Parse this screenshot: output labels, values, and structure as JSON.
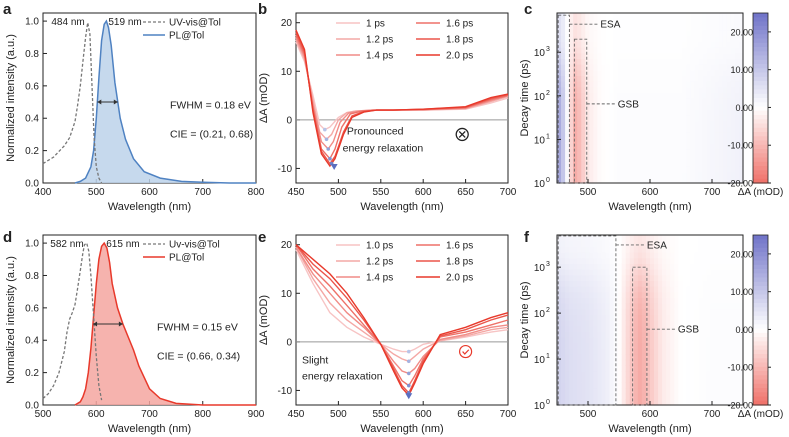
{
  "colors": {
    "blue": "#4f82c2",
    "blue_fill": "#bcd2ea",
    "red": "#e8392b",
    "red_fill": "#f5a6a0",
    "dashed": "#777777",
    "ann_grey": "#9a9a9a",
    "heat_pos": "#6f72c8",
    "heat_neg": "#f07068",
    "bg": "#ffffff",
    "axis": "#222222"
  },
  "chart_data": [
    {
      "id": "a",
      "panel_label": "a",
      "type": "line",
      "xlabel": "Wavelength (nm)",
      "ylabel": "Normalized intensity (a.u.)",
      "xlim": [
        400,
        800
      ],
      "ylim": [
        0,
        1.05
      ],
      "xticks": [
        "400",
        "500",
        "600",
        "700",
        "800"
      ],
      "yticks": [
        "0.0",
        "0.2",
        "0.4",
        "0.6",
        "0.8",
        "1.0"
      ],
      "legend": [
        {
          "label": "UV-vis@Tol",
          "style": "dashed"
        },
        {
          "label": "PL@Tol",
          "style": "solid-blue"
        }
      ],
      "annotations": {
        "peak1": "484 nm",
        "peak2": "519 nm",
        "fwhm": "FWHM = 0.18 eV",
        "cie": "CIE = (0.21, 0.68)"
      },
      "series": [
        {
          "name": "UV-vis@Tol",
          "x": [
            400,
            420,
            440,
            450,
            460,
            465,
            470,
            475,
            480,
            484,
            488,
            492,
            496,
            500,
            505,
            510
          ],
          "y": [
            0.12,
            0.16,
            0.23,
            0.28,
            0.38,
            0.48,
            0.6,
            0.75,
            0.9,
            0.99,
            0.92,
            0.6,
            0.28,
            0.1,
            0.03,
            0.0
          ]
        },
        {
          "name": "PL@Tol",
          "x": [
            460,
            470,
            480,
            490,
            495,
            500,
            505,
            510,
            515,
            519,
            523,
            528,
            535,
            545,
            555,
            570,
            590,
            620,
            660,
            700,
            750,
            800
          ],
          "y": [
            0.0,
            0.01,
            0.03,
            0.1,
            0.2,
            0.4,
            0.65,
            0.88,
            0.98,
            1.0,
            0.96,
            0.85,
            0.62,
            0.4,
            0.27,
            0.15,
            0.07,
            0.03,
            0.01,
            0.005,
            0.0,
            0.0
          ]
        }
      ]
    },
    {
      "id": "b",
      "panel_label": "b",
      "type": "line",
      "xlabel": "Wavelength (nm)",
      "ylabel": "ΔA (mOD)",
      "xlim": [
        450,
        700
      ],
      "ylim": [
        -13,
        22
      ],
      "xticks": [
        "450",
        "500",
        "550",
        "600",
        "650",
        "700"
      ],
      "yticks": [
        "-10",
        "0",
        "10",
        "20"
      ],
      "legend": [
        {
          "label": "1 ps",
          "shade": 0
        },
        {
          "label": "1.2 ps",
          "shade": 1
        },
        {
          "label": "1.4 ps",
          "shade": 2
        },
        {
          "label": "1.6 ps",
          "shade": 3
        },
        {
          "label": "1.8 ps",
          "shade": 4
        },
        {
          "label": "2.0 ps",
          "shade": 5
        }
      ],
      "annotations": {
        "text1": "Pronounced",
        "text2": "energy relaxation"
      },
      "series": [
        {
          "name": "1 ps",
          "x": [
            450,
            460,
            470,
            478,
            484,
            490,
            500,
            510,
            520,
            540,
            560,
            600,
            650,
            680,
            700
          ],
          "y": [
            16,
            12,
            5,
            -1,
            -2,
            -1.5,
            0.5,
            1.5,
            1.8,
            2.0,
            2.0,
            2.0,
            2.2,
            3.5,
            4.5
          ]
        },
        {
          "name": "1.2 ps",
          "x": [
            450,
            460,
            470,
            478,
            486,
            492,
            500,
            510,
            520,
            540,
            560,
            600,
            650,
            680,
            700
          ],
          "y": [
            16.5,
            12.5,
            4,
            -2.5,
            -4,
            -3,
            0,
            1.5,
            1.8,
            2.0,
            2.0,
            2.0,
            2.3,
            3.8,
            4.8
          ]
        },
        {
          "name": "1.4 ps",
          "x": [
            450,
            460,
            470,
            480,
            488,
            494,
            502,
            512,
            525,
            540,
            560,
            600,
            650,
            680,
            700
          ],
          "y": [
            17,
            13,
            3,
            -4.5,
            -6,
            -4.5,
            -0.5,
            1.4,
            1.8,
            2.0,
            2.0,
            2.1,
            2.4,
            4.0,
            5.0
          ]
        },
        {
          "name": "1.6 ps",
          "x": [
            450,
            460,
            470,
            480,
            490,
            496,
            504,
            514,
            528,
            545,
            565,
            600,
            650,
            680,
            700
          ],
          "y": [
            17.5,
            13.5,
            2.5,
            -6,
            -8,
            -6,
            -1.5,
            1.2,
            1.8,
            2.0,
            2.0,
            2.1,
            2.5,
            4.2,
            5.0
          ]
        },
        {
          "name": "1.8 ps",
          "x": [
            450,
            460,
            470,
            480,
            490,
            496,
            506,
            516,
            530,
            545,
            565,
            600,
            650,
            680,
            700
          ],
          "y": [
            18,
            14,
            2,
            -6.5,
            -9,
            -7.5,
            -2.5,
            0.8,
            1.7,
            2.0,
            2.0,
            2.2,
            2.6,
            4.4,
            5.2
          ]
        },
        {
          "name": "2.0 ps",
          "x": [
            450,
            460,
            470,
            480,
            490,
            496,
            506,
            516,
            530,
            545,
            565,
            600,
            650,
            680,
            700
          ],
          "y": [
            18.5,
            14.5,
            1.5,
            -7,
            -9.5,
            -8,
            -3,
            0.5,
            1.6,
            2.0,
            2.0,
            2.2,
            2.7,
            4.6,
            5.3
          ]
        }
      ],
      "marker_points": {
        "x": [
          484,
          486,
          488,
          490,
          492,
          495
        ],
        "y": [
          -2,
          -4,
          -6,
          -8,
          -9,
          -9.5
        ]
      }
    },
    {
      "id": "c",
      "panel_label": "c",
      "type": "heatmap",
      "xlabel": "Wavelength (nm)",
      "ylabel": "Decay time (ps)",
      "xlim": [
        450,
        750
      ],
      "ylim_log10": [
        0,
        3.9
      ],
      "xticks": [
        "500",
        "600",
        "700"
      ],
      "yticks": [
        "10",
        "10",
        "10",
        "10"
      ],
      "ytick_exponents": [
        "0",
        "1",
        "2",
        "3"
      ],
      "colorbar_ticks": [
        "20.00",
        "10.00",
        "0.00",
        "-10.00",
        "-20.00"
      ],
      "colorbar_label": "ΔA (mOD)",
      "colorbar_range": [
        -20,
        25
      ],
      "boxes": [
        {
          "label": "ESA",
          "x": [
            452,
            470
          ],
          "ylog": [
            0,
            3.85
          ]
        },
        {
          "label": "GSB",
          "x": [
            478,
            498
          ],
          "ylog": [
            0,
            3.3
          ]
        }
      ],
      "spectrum_x": [
        450,
        460,
        470,
        480,
        490,
        500,
        520,
        550,
        600,
        650,
        700,
        750
      ],
      "spectrum_a": [
        18,
        10,
        -4,
        -12,
        -8,
        -3,
        -0.5,
        0.5,
        0.5,
        0.5,
        1.5,
        2.5
      ],
      "decay_tau": 600,
      "decay_base": 0.35
    },
    {
      "id": "d",
      "panel_label": "d",
      "type": "line",
      "xlabel": "Wavelength (nm)",
      "ylabel": "Normalized intensity (a.u.)",
      "xlim": [
        500,
        900
      ],
      "ylim": [
        0,
        1.05
      ],
      "xticks": [
        "500",
        "600",
        "700",
        "800",
        "900"
      ],
      "yticks": [
        "0.0",
        "0.2",
        "0.4",
        "0.6",
        "0.8",
        "1.0"
      ],
      "legend": [
        {
          "label": "Uv-vis@Tol",
          "style": "dashed"
        },
        {
          "label": "PL@Tol",
          "style": "solid-red"
        }
      ],
      "annotations": {
        "peak1": "582 nm",
        "peak2": "615 nm",
        "fwhm": "FWHM = 0.15 eV",
        "cie": "CIE = (0.66, 0.34)"
      },
      "series": [
        {
          "name": "Uv-vis@Tol",
          "x": [
            500,
            510,
            520,
            530,
            540,
            545,
            550,
            555,
            560,
            565,
            570,
            575,
            578,
            582,
            586,
            590,
            595,
            600,
            605,
            610
          ],
          "y": [
            0.04,
            0.07,
            0.12,
            0.2,
            0.33,
            0.45,
            0.53,
            0.57,
            0.62,
            0.72,
            0.83,
            0.94,
            0.99,
            1.0,
            0.95,
            0.8,
            0.55,
            0.3,
            0.12,
            0.03
          ]
        },
        {
          "name": "PL@Tol",
          "x": [
            560,
            570,
            575,
            580,
            585,
            590,
            595,
            600,
            605,
            610,
            615,
            620,
            625,
            630,
            640,
            650,
            660,
            670,
            680,
            700,
            720,
            750,
            800,
            900
          ],
          "y": [
            0.0,
            0.02,
            0.05,
            0.1,
            0.2,
            0.35,
            0.55,
            0.75,
            0.9,
            0.98,
            1.0,
            0.97,
            0.88,
            0.75,
            0.6,
            0.5,
            0.42,
            0.34,
            0.24,
            0.1,
            0.04,
            0.01,
            0.0,
            0.0
          ]
        }
      ]
    },
    {
      "id": "e",
      "panel_label": "e",
      "type": "line",
      "xlabel": "Wavelength (nm)",
      "ylabel": "ΔA (mOD)",
      "xlim": [
        450,
        700
      ],
      "ylim": [
        -13,
        22
      ],
      "xticks": [
        "450",
        "500",
        "550",
        "600",
        "650",
        "700"
      ],
      "yticks": [
        "-10",
        "0",
        "10",
        "20"
      ],
      "legend": [
        {
          "label": "1.0 ps",
          "shade": 0
        },
        {
          "label": "1.2 ps",
          "shade": 1
        },
        {
          "label": "1.4 ps",
          "shade": 2
        },
        {
          "label": "1.6 ps",
          "shade": 3
        },
        {
          "label": "1.8 ps",
          "shade": 4
        },
        {
          "label": "2.0 ps",
          "shade": 5
        }
      ],
      "annotations": {
        "text1": "Slight",
        "text2": "energy relaxation"
      },
      "series": [
        {
          "name": "1.0 ps",
          "x": [
            450,
            470,
            490,
            510,
            530,
            550,
            565,
            575,
            583,
            590,
            600,
            620,
            650,
            680,
            700
          ],
          "y": [
            19,
            12,
            6,
            3,
            1,
            -0.5,
            -1.5,
            -2,
            -2,
            -1.5,
            -0.5,
            0.2,
            1.0,
            2.0,
            2.5
          ]
        },
        {
          "name": "1.2 ps",
          "x": [
            450,
            470,
            490,
            510,
            530,
            550,
            565,
            575,
            583,
            590,
            600,
            620,
            650,
            680,
            700
          ],
          "y": [
            19.5,
            13,
            8,
            4.5,
            2,
            -0.5,
            -2.5,
            -3.5,
            -4,
            -3,
            -1.5,
            0.3,
            1.2,
            2.5,
            3.0
          ]
        },
        {
          "name": "1.4 ps",
          "x": [
            450,
            470,
            490,
            510,
            530,
            550,
            565,
            575,
            583,
            590,
            600,
            620,
            650,
            680,
            700
          ],
          "y": [
            19.5,
            14,
            10,
            6,
            3,
            -0.5,
            -4,
            -6,
            -6.5,
            -5.5,
            -3,
            0.5,
            1.5,
            3.0,
            3.5
          ]
        },
        {
          "name": "1.6 ps",
          "x": [
            450,
            470,
            490,
            510,
            530,
            550,
            565,
            575,
            583,
            590,
            600,
            620,
            650,
            680,
            700
          ],
          "y": [
            20,
            15,
            11.5,
            7.5,
            3.5,
            -0.5,
            -5,
            -8,
            -9,
            -7,
            -3.5,
            1.0,
            2.0,
            3.5,
            4.5
          ]
        },
        {
          "name": "1.8 ps",
          "x": [
            450,
            470,
            490,
            510,
            530,
            550,
            565,
            575,
            583,
            590,
            600,
            620,
            650,
            680,
            700
          ],
          "y": [
            20,
            16,
            13,
            9,
            4.5,
            -0.5,
            -5.5,
            -9,
            -10.5,
            -8,
            -4,
            1.2,
            2.5,
            4.5,
            5.5
          ]
        },
        {
          "name": "2.0 ps",
          "x": [
            450,
            470,
            490,
            510,
            530,
            550,
            565,
            575,
            583,
            590,
            600,
            620,
            650,
            680,
            700
          ],
          "y": [
            20,
            17,
            14,
            10,
            5,
            -0.5,
            -6,
            -9.5,
            -11,
            -8.5,
            -4.5,
            1.5,
            3.0,
            5.0,
            6.0
          ]
        }
      ],
      "marker_points": {
        "x": [
          583,
          583,
          583,
          583,
          583,
          583
        ],
        "y": [
          -2,
          -4,
          -6.5,
          -9,
          -10.5,
          -11
        ]
      }
    },
    {
      "id": "f",
      "panel_label": "f",
      "type": "heatmap",
      "xlabel": "Wavelength (nm)",
      "ylabel": "Decay time (ps)",
      "xlim": [
        450,
        750
      ],
      "ylim_log10": [
        0,
        3.7
      ],
      "xticks": [
        "500",
        "600",
        "700"
      ],
      "yticks": [
        "10",
        "10",
        "10",
        "10"
      ],
      "ytick_exponents": [
        "0",
        "1",
        "2",
        "3"
      ],
      "colorbar_ticks": [
        "20.00",
        "10.00",
        "0.00",
        "-10.00",
        "-20.00"
      ],
      "colorbar_label": "ΔA (mOD)",
      "colorbar_range": [
        -20,
        25
      ],
      "boxes": [
        {
          "label": "ESA",
          "x": [
            452,
            545
          ],
          "ylog": [
            0,
            3.68
          ]
        },
        {
          "label": "GSB",
          "x": [
            572,
            595
          ],
          "ylog": [
            0,
            3.0
          ]
        }
      ],
      "spectrum_x": [
        450,
        470,
        500,
        530,
        550,
        560,
        575,
        585,
        600,
        620,
        650,
        700,
        750
      ],
      "spectrum_a": [
        8,
        6,
        5,
        3,
        0,
        -4,
        -10,
        -12,
        -8,
        -3,
        0,
        0.5,
        0.5
      ],
      "decay_tau": 800,
      "decay_base": 0.3
    }
  ]
}
